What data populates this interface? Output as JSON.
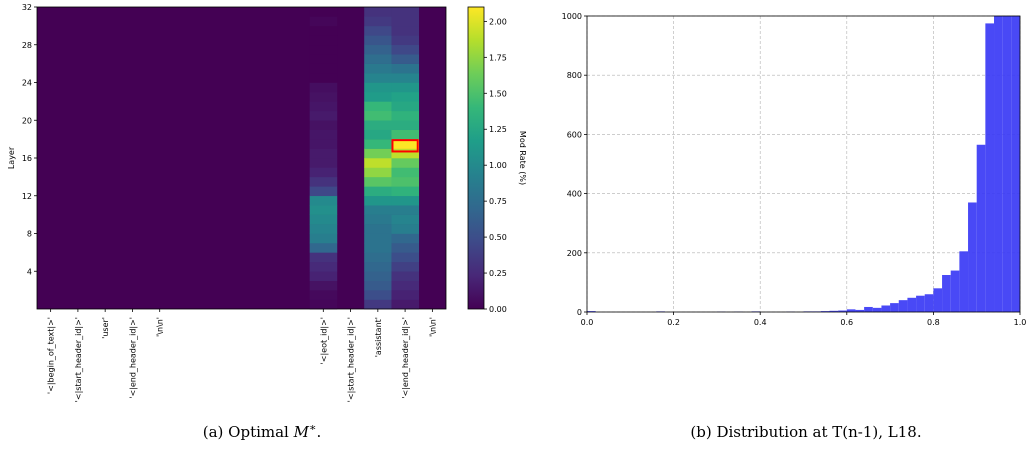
{
  "chart_data": [
    {
      "type": "heatmap",
      "title": "",
      "caption": "(a) Optimal M*.",
      "caption_prefix": "(a) Optimal ",
      "caption_math": "M",
      "caption_sup": "∗",
      "caption_suffix": ".",
      "ylabel": "Layer",
      "xlabel": "",
      "ylim": [
        0,
        32
      ],
      "y_ticks": [
        "4",
        "8",
        "12",
        "16",
        "20",
        "24",
        "28",
        "32"
      ],
      "x_tick_labels": [
        "'<|begin_of_text|>'",
        "'<|start_header_id|>'",
        "'user'",
        "'<|end_header_id|>'",
        "'\\n\\n'",
        "'<|eot_id|>'",
        "'<|start_header_id|>'",
        "'assistant'",
        "'<|end_header_id|>'",
        "'\\n\\n'"
      ],
      "x_tick_positions": [
        0,
        1,
        2,
        3,
        4,
        10,
        11,
        12,
        13,
        14
      ],
      "n_columns": 15,
      "n_layers": 32,
      "colormap": "viridis",
      "colorbar": {
        "label": "Mod Rate (%)",
        "min": 0.0,
        "max": 2.1,
        "ticks": [
          "0.00",
          "0.25",
          "0.50",
          "0.75",
          "1.00",
          "1.25",
          "1.50",
          "1.75",
          "2.00"
        ]
      },
      "columns": [
        {
          "index": 10,
          "token": "'<|eot_id|>'",
          "values": [
            0.03,
            0.05,
            0.1,
            0.2,
            0.25,
            0.3,
            0.7,
            0.9,
            0.95,
            1.0,
            1.05,
            1.0,
            0.45,
            0.3,
            0.2,
            0.15,
            0.15,
            0.12,
            0.12,
            0.1,
            0.15,
            0.12,
            0.1,
            0.08,
            0,
            0,
            0,
            0,
            0,
            0,
            0.03,
            0
          ]
        },
        {
          "index": 12,
          "token": "'assistant'",
          "values": [
            0.35,
            0.5,
            0.6,
            0.65,
            0.7,
            0.75,
            0.8,
            0.8,
            0.8,
            0.85,
            0.9,
            1.1,
            1.3,
            1.55,
            1.75,
            1.9,
            1.65,
            1.4,
            1.25,
            1.3,
            1.45,
            1.4,
            1.15,
            1.1,
            0.95,
            0.85,
            0.75,
            0.65,
            0.55,
            0.45,
            0.35,
            0.3
          ]
        },
        {
          "index": 13,
          "token": "'<|end_header_id|>'",
          "values": [
            0.15,
            0.2,
            0.25,
            0.3,
            0.4,
            0.5,
            0.6,
            0.7,
            0.9,
            0.95,
            0.9,
            1.1,
            1.35,
            1.5,
            1.45,
            1.6,
            1.9,
            2.1,
            1.45,
            1.3,
            1.35,
            1.25,
            1.2,
            1.1,
            0.95,
            0.8,
            0.6,
            0.45,
            0.35,
            0.3,
            0.3,
            0.3
          ]
        }
      ],
      "highlight": {
        "column": 13,
        "layer": 18,
        "color": "#ff0000"
      }
    },
    {
      "type": "bar",
      "title": "",
      "caption": "(b) Distribution at T(n-1), L18.",
      "xlabel": "",
      "ylabel": "",
      "xlim": [
        0.0,
        1.0
      ],
      "ylim": [
        0,
        1000
      ],
      "x_ticks": [
        "0.0",
        "0.2",
        "0.4",
        "0.6",
        "0.8",
        "1.0"
      ],
      "y_ticks": [
        "0",
        "200",
        "400",
        "600",
        "800",
        "1000"
      ],
      "grid": true,
      "bar_color": "#3a3af5",
      "bin_width": 0.02,
      "bin_starts": [
        0.0,
        0.02,
        0.04,
        0.06,
        0.08,
        0.1,
        0.12,
        0.14,
        0.16,
        0.18,
        0.2,
        0.22,
        0.24,
        0.26,
        0.28,
        0.3,
        0.32,
        0.34,
        0.36,
        0.38,
        0.4,
        0.42,
        0.44,
        0.46,
        0.48,
        0.5,
        0.52,
        0.54,
        0.56,
        0.58,
        0.6,
        0.62,
        0.64,
        0.66,
        0.68,
        0.7,
        0.72,
        0.74,
        0.76,
        0.78,
        0.8,
        0.82,
        0.84,
        0.86,
        0.88,
        0.9,
        0.92,
        0.94,
        0.96,
        0.98
      ],
      "values": [
        3,
        0,
        0,
        0,
        0,
        0,
        0,
        0,
        2,
        0,
        0,
        0,
        0,
        0,
        0,
        1,
        0,
        1,
        0,
        2,
        0,
        0,
        0,
        1,
        0,
        2,
        2,
        3,
        4,
        5,
        9,
        7,
        17,
        14,
        22,
        30,
        40,
        48,
        55,
        60,
        80,
        125,
        140,
        205,
        370,
        565,
        975,
        1000,
        1000,
        1000
      ]
    }
  ]
}
